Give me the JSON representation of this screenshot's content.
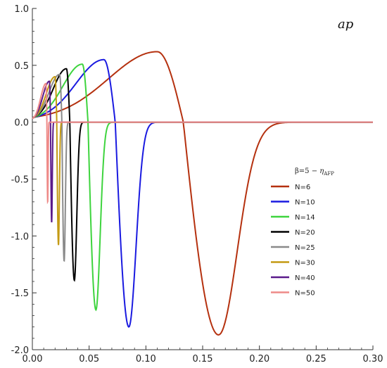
{
  "chart_data": {
    "type": "line",
    "title": "",
    "xlabel": "",
    "ylabel": "",
    "xlim": [
      0.0,
      0.3
    ],
    "ylim": [
      -2.0,
      1.0
    ],
    "xticks": [
      "0.00",
      "0.05",
      "0.10",
      "0.15",
      "0.20",
      "0.25",
      "0.30"
    ],
    "yticks": [
      "1.0",
      "0.5",
      "0.0",
      "-0.5",
      "-1.0",
      "-1.5",
      "-2.0"
    ],
    "annotation": "ap",
    "legend": {
      "title_beta": "β=5 −",
      "title_eta": "η",
      "title_sub": "AFP",
      "placement": "right-middle"
    },
    "series": [
      {
        "name": "N=6",
        "color": "#b5310f",
        "peak_x": 0.11,
        "peak_y": 0.62,
        "trough_x": 0.164,
        "trough_y": -1.87,
        "zero_x": 0.133
      },
      {
        "name": "N=10",
        "color": "#1a1ae0",
        "peak_x": 0.063,
        "peak_y": 0.55,
        "trough_x": 0.085,
        "trough_y": -1.8,
        "zero_x": 0.073
      },
      {
        "name": "N=14",
        "color": "#3ed43e",
        "peak_x": 0.044,
        "peak_y": 0.51,
        "trough_x": 0.056,
        "trough_y": -1.65,
        "zero_x": 0.049
      },
      {
        "name": "N=20",
        "color": "#000000",
        "peak_x": 0.03,
        "peak_y": 0.47,
        "trough_x": 0.037,
        "trough_y": -1.39,
        "zero_x": 0.033
      },
      {
        "name": "N=25",
        "color": "#8a8a8a",
        "peak_x": 0.024,
        "peak_y": 0.42,
        "trough_x": 0.028,
        "trough_y": -1.22,
        "zero_x": 0.026
      },
      {
        "name": "N=30",
        "color": "#c49a14",
        "peak_x": 0.02,
        "peak_y": 0.4,
        "trough_x": 0.023,
        "trough_y": -1.08,
        "zero_x": 0.0215
      },
      {
        "name": "N=40",
        "color": "#5a1a8a",
        "peak_x": 0.015,
        "peak_y": 0.36,
        "trough_x": 0.017,
        "trough_y": -0.88,
        "zero_x": 0.016
      },
      {
        "name": "N=50",
        "color": "#ee8a88",
        "peak_x": 0.012,
        "peak_y": 0.34,
        "trough_x": 0.0135,
        "trough_y": -0.7,
        "zero_x": 0.0128
      }
    ]
  }
}
